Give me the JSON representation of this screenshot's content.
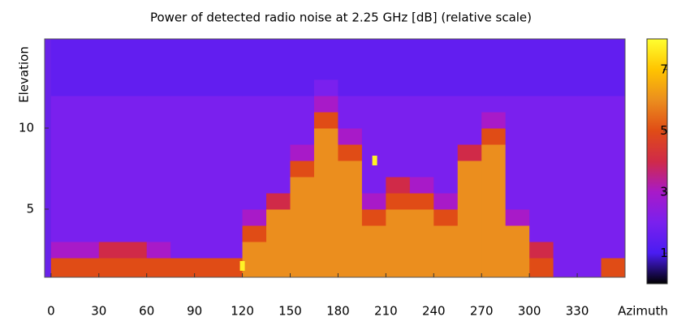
{
  "chart_data": {
    "type": "heatmap",
    "title": "Power of detected radio noise at 2.25 GHz [dB] (relative scale)",
    "x_label": "Azimuth",
    "y_label": "Elevation",
    "x_edges": [
      0,
      15,
      30,
      45,
      60,
      75,
      90,
      105,
      120,
      135,
      150,
      165,
      180,
      195,
      210,
      225,
      240,
      255,
      270,
      285,
      300,
      315,
      330,
      345,
      360
    ],
    "y_edges": [
      0.8,
      2,
      3,
      4,
      5,
      6,
      7,
      8,
      9,
      10,
      11,
      12,
      13,
      14,
      15.5
    ],
    "z": [
      [
        5,
        5,
        5,
        5,
        5,
        5,
        5,
        5,
        6,
        6,
        6,
        6,
        6,
        6,
        6,
        6,
        6,
        6,
        6,
        6,
        5,
        2,
        2,
        5
      ],
      [
        3,
        3,
        4,
        4,
        3,
        2,
        2,
        2,
        6,
        6,
        6,
        6,
        6,
        6,
        6,
        6,
        6,
        6,
        6,
        6,
        4,
        2,
        2,
        2
      ],
      [
        2,
        2,
        2,
        2,
        2,
        2,
        2,
        2,
        5,
        6,
        6,
        6,
        6,
        6,
        6,
        6,
        6,
        6,
        6,
        6,
        2,
        2,
        2,
        2
      ],
      [
        2,
        2,
        2,
        2,
        2,
        2,
        2,
        2,
        3,
        6,
        6,
        6,
        6,
        5,
        6,
        6,
        5,
        6,
        6,
        3,
        2,
        2,
        2,
        2
      ],
      [
        2,
        2,
        2,
        2,
        2,
        2,
        2,
        2,
        2,
        4,
        6,
        6,
        6,
        3,
        5,
        5,
        3,
        6,
        6,
        2,
        2,
        2,
        2,
        2
      ],
      [
        2,
        2,
        2,
        2,
        2,
        2,
        2,
        2,
        2,
        2,
        6,
        6,
        6,
        2,
        4,
        3,
        2,
        6,
        6,
        2,
        2,
        2,
        2,
        2
      ],
      [
        2,
        2,
        2,
        2,
        2,
        2,
        2,
        2,
        2,
        2,
        5,
        6,
        6,
        2,
        2,
        2,
        2,
        6,
        6,
        2,
        2,
        2,
        2,
        2
      ],
      [
        2,
        2,
        2,
        2,
        2,
        2,
        2,
        2,
        2,
        2,
        3,
        6,
        5,
        2,
        2,
        2,
        2,
        4,
        6,
        2,
        2,
        2,
        2,
        2
      ],
      [
        2,
        2,
        2,
        2,
        2,
        2,
        2,
        2,
        2,
        2,
        2,
        6,
        3,
        2,
        2,
        2,
        2,
        2,
        5,
        2,
        2,
        2,
        2,
        2
      ],
      [
        2,
        2,
        2,
        2,
        2,
        2,
        2,
        2,
        2,
        2,
        2,
        5,
        2,
        2,
        2,
        2,
        2,
        2,
        3,
        2,
        2,
        2,
        2,
        2
      ],
      [
        2,
        2,
        2,
        2,
        2,
        2,
        2,
        2,
        2,
        2,
        2,
        3,
        2,
        2,
        2,
        2,
        2,
        2,
        2,
        2,
        2,
        2,
        2,
        2
      ],
      [
        1.5,
        1.5,
        1.5,
        1.5,
        1.5,
        1.5,
        1.5,
        1.5,
        1.5,
        1.5,
        1.5,
        2,
        1.5,
        1.5,
        1.5,
        1.5,
        1.5,
        1.5,
        1.5,
        1.5,
        1.5,
        1.5,
        1.5,
        1.5
      ],
      [
        1.5,
        1.5,
        1.5,
        1.5,
        1.5,
        1.5,
        1.5,
        1.5,
        1.5,
        1.5,
        1.5,
        1.5,
        1.5,
        1.5,
        1.5,
        1.5,
        1.5,
        1.5,
        1.5,
        1.5,
        1.5,
        1.5,
        1.5,
        1.5
      ],
      [
        1.5,
        1.5,
        1.5,
        1.5,
        1.5,
        1.5,
        1.5,
        1.5,
        1.5,
        1.5,
        1.5,
        1.5,
        1.5,
        1.5,
        1.5,
        1.5,
        1.5,
        1.5,
        1.5,
        1.5,
        1.5,
        1.5,
        1.5,
        1.5
      ]
    ],
    "hotspots": [
      {
        "az": 120,
        "el": 1.5,
        "value": 7.8
      },
      {
        "az": 203,
        "el": 8,
        "value": 7.8
      }
    ],
    "xlim": [
      -4,
      360
    ],
    "ylim": [
      0.8,
      15.5
    ],
    "xticks": [
      0,
      30,
      60,
      90,
      120,
      150,
      180,
      210,
      240,
      270,
      300,
      330
    ],
    "yticks": [
      5,
      10
    ],
    "clim": [
      0,
      8
    ],
    "cticks": [
      1,
      3,
      5,
      7
    ],
    "colormap": [
      "#000000",
      "#4a1cf2",
      "#7a20ee",
      "#a81ac8",
      "#d02a48",
      "#e04c16",
      "#eb8e1e",
      "#ffc400",
      "#ffff30"
    ],
    "background": "#6a22ea"
  }
}
